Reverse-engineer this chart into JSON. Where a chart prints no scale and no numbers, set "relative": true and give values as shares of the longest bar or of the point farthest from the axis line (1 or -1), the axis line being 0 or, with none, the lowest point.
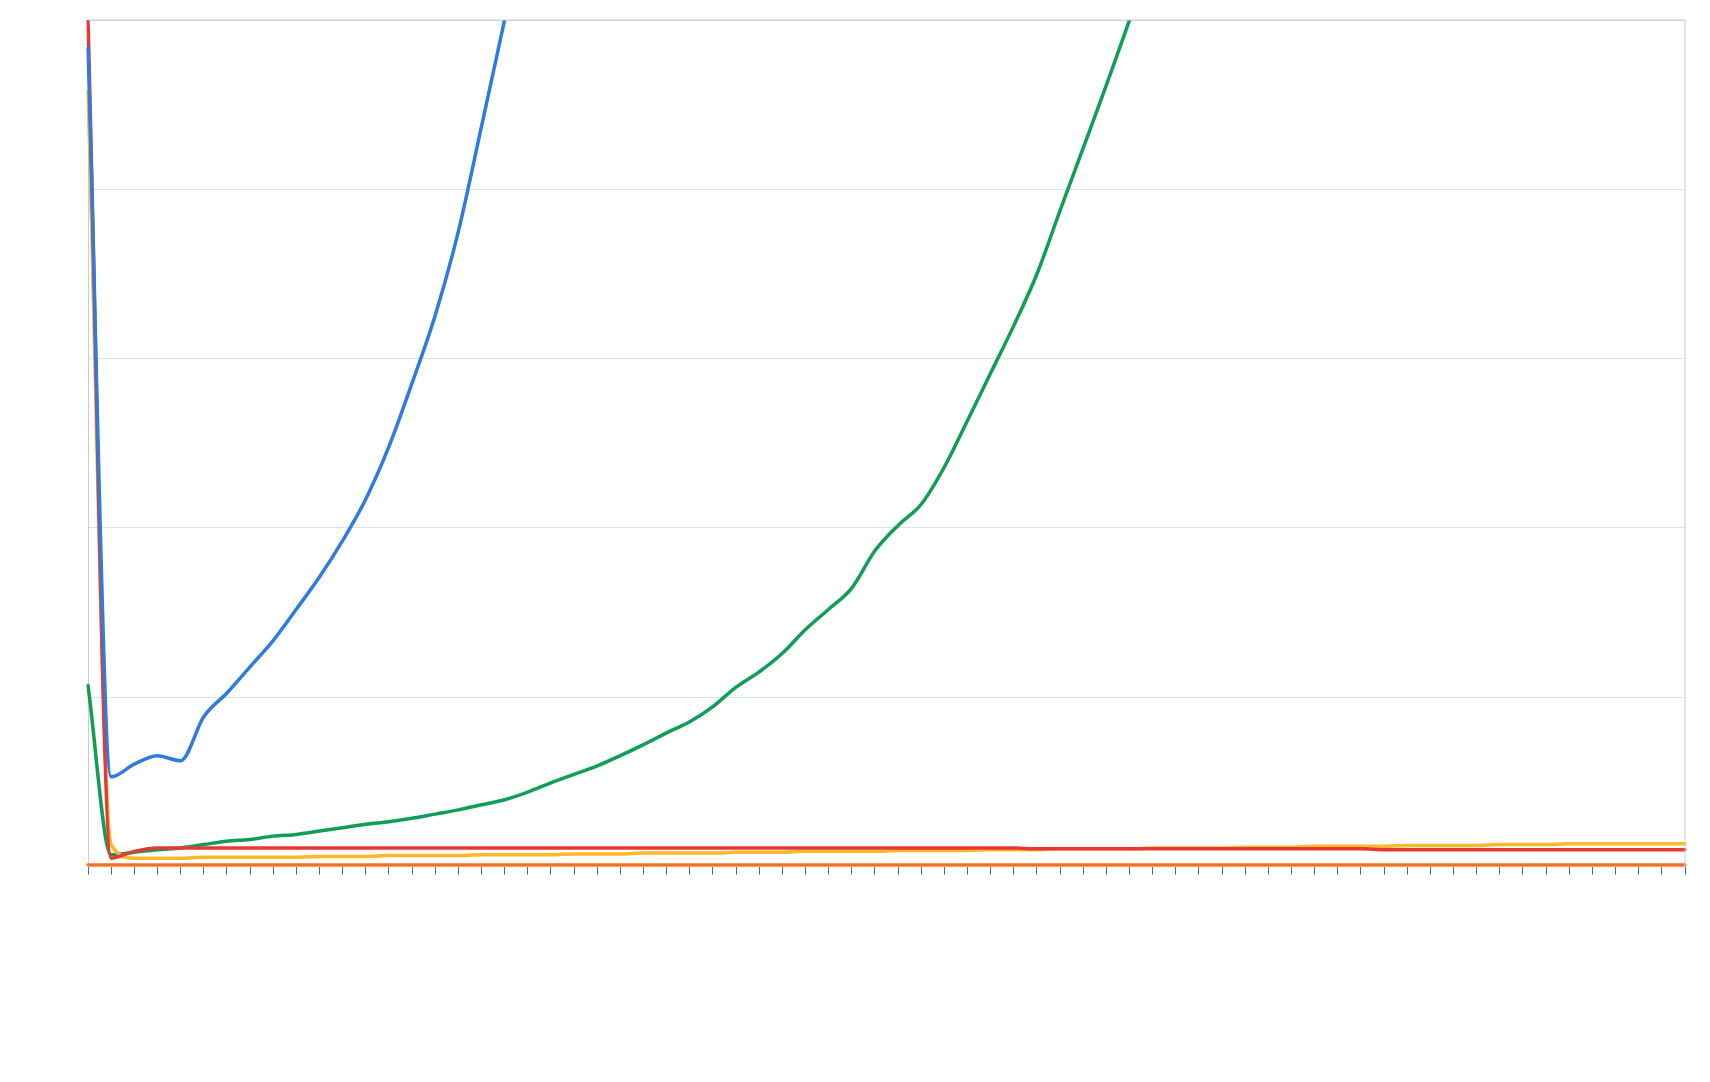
{
  "chart_data": {
    "type": "line",
    "relative": true,
    "grid": "y",
    "legend": false,
    "marker": "none",
    "line_style": "solid",
    "categories": [
      null,
      null,
      null,
      null,
      null,
      null,
      null,
      null,
      null,
      null,
      null,
      null,
      null,
      null,
      null,
      null,
      null,
      null,
      null,
      null,
      null,
      null,
      null,
      null,
      null,
      null,
      null,
      null,
      null,
      null,
      null,
      null,
      null,
      null,
      null,
      null,
      null,
      null,
      null,
      null,
      null,
      null,
      null,
      null,
      null,
      null,
      null,
      null,
      null,
      null,
      null,
      null,
      null,
      null,
      null,
      null,
      null,
      null,
      null,
      null,
      null,
      null,
      null,
      null,
      null,
      null,
      null,
      null,
      null,
      null
    ],
    "series": [
      {
        "color": "#2f7be0",
        "values": [
          0.967,
          0.106,
          0.121,
          0.131,
          0.125,
          0.177,
          0.205,
          0.236,
          0.267,
          0.304,
          0.342,
          0.385,
          0.434,
          0.496,
          0.571,
          0.651,
          0.75,
          0.874,
          1,
          null,
          null,
          null,
          null,
          null,
          null,
          null,
          null,
          null,
          null,
          null,
          null,
          null,
          null,
          null,
          null,
          null,
          null,
          null,
          null,
          null,
          null,
          null,
          null,
          null,
          null,
          null,
          null,
          null,
          null,
          null,
          null,
          null,
          null,
          null,
          null,
          null,
          null,
          null,
          null,
          null,
          null,
          null,
          null,
          null,
          null,
          null,
          null,
          null,
          null,
          null
        ]
      },
      {
        "color": "#e53935",
        "values": [
          1,
          0.01,
          0.018,
          0.022,
          0.022,
          0.022,
          0.022,
          0.022,
          0.022,
          0.022,
          0.022,
          0.022,
          0.022,
          0.022,
          0.022,
          0.022,
          0.022,
          0.022,
          0.022,
          0.022,
          0.022,
          0.022,
          0.022,
          0.022,
          0.022,
          0.022,
          0.022,
          0.022,
          0.022,
          0.022,
          0.022,
          0.022,
          0.022,
          0.022,
          0.022,
          0.022,
          0.022,
          0.022,
          0.022,
          0.022,
          0.022,
          0.021,
          0.021,
          0.021,
          0.021,
          0.021,
          0.021,
          0.021,
          0.021,
          0.021,
          0.021,
          0.021,
          0.021,
          0.021,
          0.021,
          0.021,
          0.02,
          0.02,
          0.02,
          0.02,
          0.02,
          0.02,
          0.02,
          0.02,
          0.02,
          0.02,
          0.02,
          0.02,
          0.02,
          0.02
        ]
      },
      {
        "color": "#fbb829",
        "values": [
          0.916,
          0.026,
          0.01,
          0.01,
          0.01,
          0.011,
          0.011,
          0.011,
          0.011,
          0.011,
          0.012,
          0.012,
          0.012,
          0.013,
          0.013,
          0.013,
          0.013,
          0.014,
          0.014,
          0.014,
          0.014,
          0.015,
          0.015,
          0.015,
          0.016,
          0.016,
          0.016,
          0.016,
          0.017,
          0.017,
          0.017,
          0.018,
          0.018,
          0.018,
          0.018,
          0.019,
          0.019,
          0.019,
          0.019,
          0.02,
          0.02,
          0.02,
          0.021,
          0.021,
          0.021,
          0.021,
          0.022,
          0.022,
          0.022,
          0.022,
          0.023,
          0.023,
          0.023,
          0.024,
          0.024,
          0.024,
          0.024,
          0.025,
          0.025,
          0.025,
          0.025,
          0.026,
          0.026,
          0.026,
          0.027,
          0.027,
          0.027,
          0.027,
          0.027,
          0.027
        ]
      },
      {
        "color": "#0f9d58",
        "values": [
          0.214,
          0.014,
          0.017,
          0.02,
          0.022,
          0.026,
          0.03,
          0.032,
          0.036,
          0.038,
          0.042,
          0.046,
          0.05,
          0.053,
          0.057,
          0.062,
          0.067,
          0.073,
          0.079,
          0.088,
          0.099,
          0.109,
          0.119,
          0.131,
          0.144,
          0.158,
          0.171,
          0.189,
          0.212,
          0.23,
          0.252,
          0.28,
          0.304,
          0.329,
          0.373,
          0.403,
          0.428,
          0.472,
          0.527,
          0.583,
          0.639,
          0.7,
          0.775,
          0.849,
          0.923,
          1,
          null,
          null,
          null,
          null,
          null,
          null,
          null,
          null,
          null,
          null,
          null,
          null,
          null,
          null,
          null,
          null,
          null,
          null,
          null,
          null,
          null,
          null,
          null,
          null
        ]
      },
      {
        "color": "#ff6d22",
        "values": [
          0.002,
          0.002,
          0.002,
          0.002,
          0.002,
          0.002,
          0.002,
          0.002,
          0.002,
          0.002,
          0.002,
          0.002,
          0.002,
          0.002,
          0.002,
          0.002,
          0.002,
          0.002,
          0.002,
          0.002,
          0.002,
          0.002,
          0.002,
          0.002,
          0.002,
          0.002,
          0.002,
          0.002,
          0.002,
          0.002,
          0.002,
          0.002,
          0.002,
          0.002,
          0.002,
          0.002,
          0.002,
          0.002,
          0.002,
          0.002,
          0.002,
          0.002,
          0.002,
          0.002,
          0.002,
          0.002,
          0.002,
          0.002,
          0.002,
          0.002,
          0.002,
          0.002,
          0.002,
          0.002,
          0.002,
          0.002,
          0.002,
          0.002,
          0.002,
          0.002,
          0.002,
          0.002,
          0.002,
          0.002,
          0.002,
          0.002,
          0.002,
          0.002,
          0.002,
          0.002
        ]
      }
    ]
  }
}
